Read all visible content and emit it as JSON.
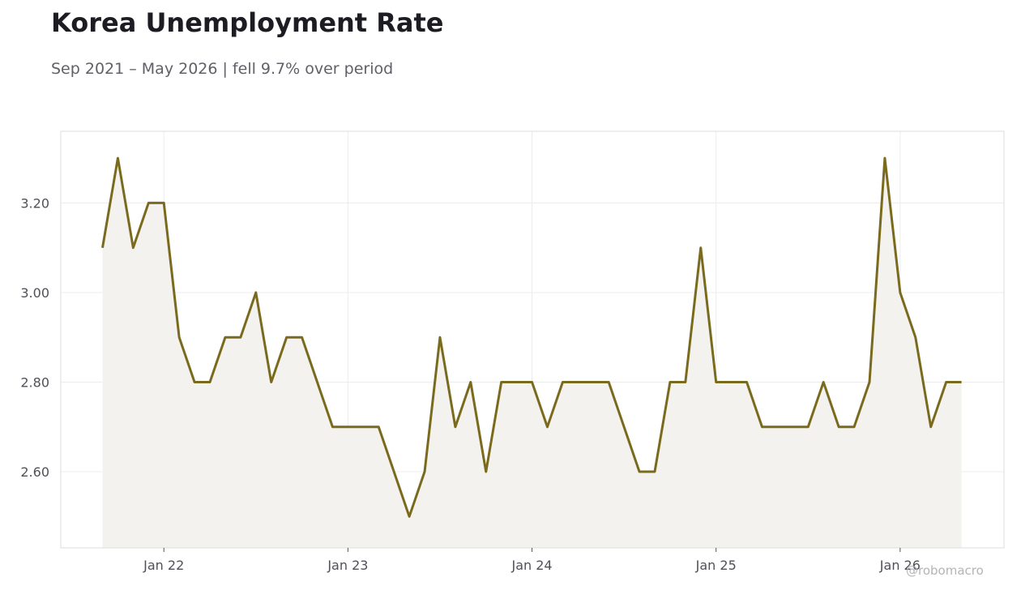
{
  "title": "Korea Unemployment Rate",
  "subtitle": "Sep 2021 – May 2026 | fell 9.7% over period",
  "watermark": "@robomacro",
  "colors": {
    "line": "#7a6a1e",
    "fill": "#f3f2ee",
    "grid": "#ececec",
    "frame": "#dddddd"
  },
  "chart_data": {
    "type": "area",
    "title": "Korea Unemployment Rate",
    "subtitle": "Sep 2021 – May 2026 | fell 9.7% over period",
    "x_start": "2021-09",
    "x": [
      "2021-09",
      "2021-10",
      "2021-11",
      "2021-12",
      "2022-01",
      "2022-02",
      "2022-03",
      "2022-04",
      "2022-05",
      "2022-06",
      "2022-07",
      "2022-08",
      "2022-09",
      "2022-10",
      "2022-11",
      "2022-12",
      "2023-01",
      "2023-02",
      "2023-03",
      "2023-04",
      "2023-05",
      "2023-06",
      "2023-07",
      "2023-08",
      "2023-09",
      "2023-10",
      "2023-11",
      "2023-12",
      "2024-01",
      "2024-02",
      "2024-03",
      "2024-04",
      "2024-05",
      "2024-06",
      "2024-07",
      "2024-08",
      "2024-09",
      "2024-10",
      "2024-11",
      "2024-12",
      "2025-01",
      "2025-02",
      "2025-03",
      "2025-04",
      "2025-05",
      "2025-06",
      "2025-07",
      "2025-08",
      "2025-09",
      "2025-10",
      "2025-11",
      "2025-12",
      "2026-01",
      "2026-02",
      "2026-03",
      "2026-04",
      "2026-05"
    ],
    "values": [
      3.1,
      3.3,
      3.1,
      3.2,
      3.2,
      2.9,
      2.8,
      2.8,
      2.9,
      2.9,
      3.0,
      2.8,
      2.9,
      2.9,
      2.8,
      2.7,
      2.7,
      2.7,
      2.7,
      2.6,
      2.5,
      2.6,
      2.9,
      2.7,
      2.8,
      2.6,
      2.8,
      2.8,
      2.8,
      2.7,
      2.8,
      2.8,
      2.8,
      2.8,
      2.7,
      2.6,
      2.6,
      2.8,
      2.8,
      3.1,
      2.8,
      2.8,
      2.8,
      2.7,
      2.7,
      2.7,
      2.7,
      2.8,
      2.7,
      2.7,
      2.8,
      3.3,
      3.0,
      2.9,
      2.7,
      2.8,
      2.8
    ],
    "ylim": [
      2.43,
      3.36
    ],
    "yticks": [
      "2.60",
      "2.80",
      "3.00",
      "3.20"
    ],
    "xticks": [
      "Jan 22",
      "Jan 23",
      "Jan 24",
      "Jan 25",
      "Jan 26"
    ],
    "grid": true,
    "xlabel": "",
    "ylabel": ""
  }
}
